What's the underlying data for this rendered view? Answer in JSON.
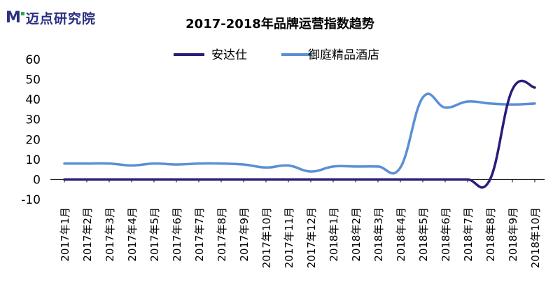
{
  "logo": {
    "mark": "M",
    "text": "迈点研究院"
  },
  "colors": {
    "series1": "#2E1A78",
    "series2": "#5B8FD6",
    "logo": "#2B2F82",
    "logo_accent": "#2FA84F"
  },
  "chart_data": {
    "type": "line",
    "title": "2017-2018年品牌运营指数趋势",
    "xlabel": "",
    "ylabel": "",
    "ylim": [
      -10,
      60
    ],
    "yticks": [
      -10,
      0,
      10,
      20,
      30,
      40,
      50,
      60
    ],
    "grid": false,
    "legend_position": "top-center",
    "categories": [
      "2017年1月",
      "2017年2月",
      "2017年3月",
      "2017年4月",
      "2017年5月",
      "2017年6月",
      "2017年7月",
      "2017年8月",
      "2017年9月",
      "2017年10月",
      "2017年11月",
      "2017年12月",
      "2018年1月",
      "2018年2月",
      "2018年3月",
      "2018年4月",
      "2018年5月",
      "2018年6月",
      "2018年7月",
      "2018年8月",
      "2018年9月",
      "2018年10月"
    ],
    "series": [
      {
        "name": "安达仕",
        "values": [
          0,
          0,
          0,
          0,
          0,
          0,
          0,
          0,
          0,
          0,
          0,
          0,
          0,
          0,
          0,
          0,
          0,
          0,
          0,
          0,
          45,
          46
        ]
      },
      {
        "name": "御庭精品酒店",
        "values": [
          8,
          8,
          8,
          7,
          8,
          7.5,
          8,
          8,
          7.5,
          6,
          7,
          4,
          6.5,
          6.5,
          6.5,
          6,
          41,
          36,
          39,
          38,
          37.5,
          38
        ]
      }
    ]
  }
}
